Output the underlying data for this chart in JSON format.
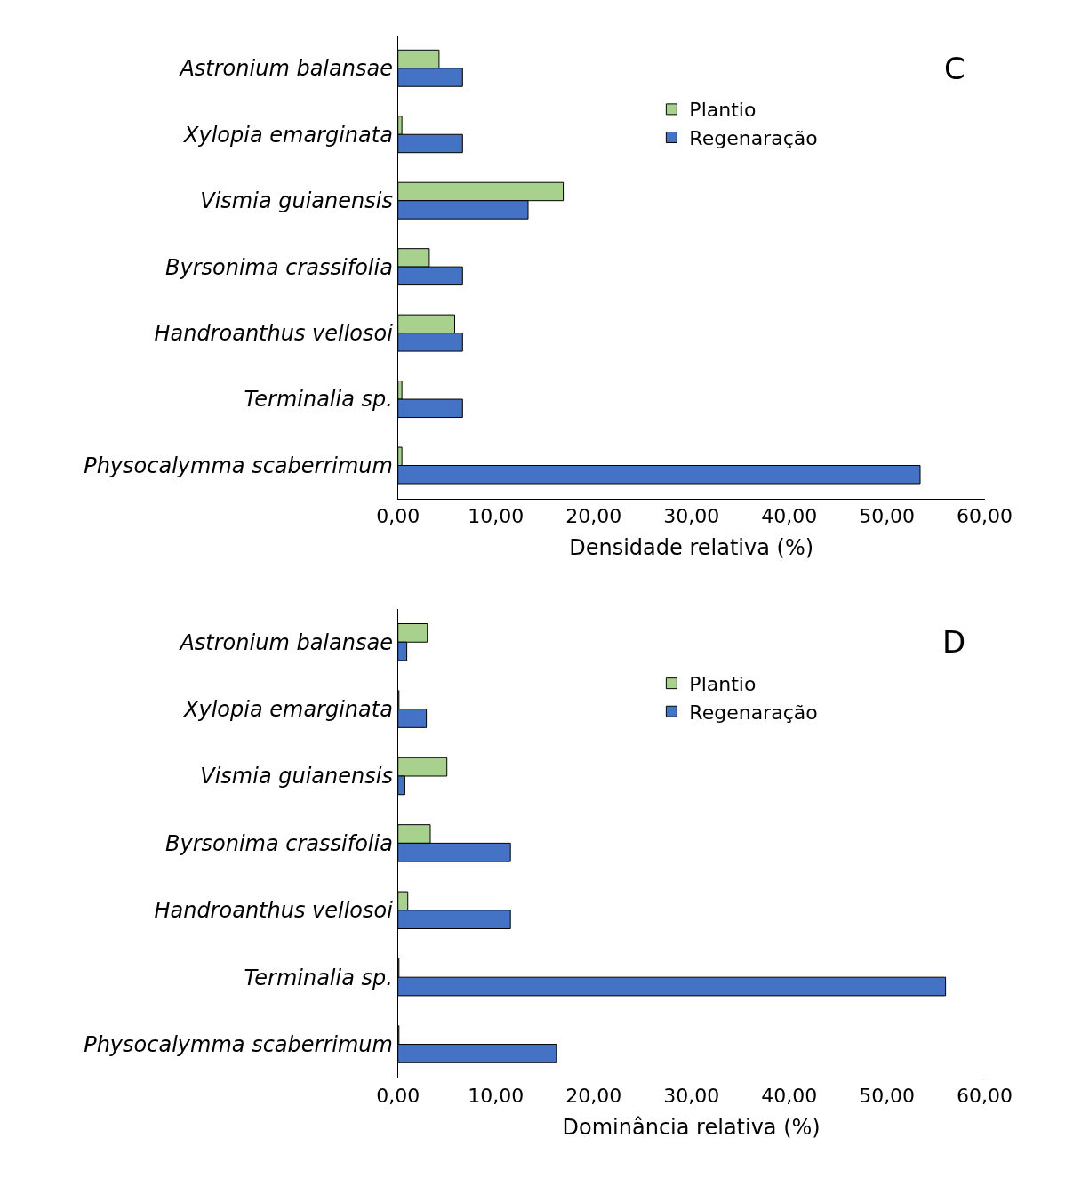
{
  "chart_data": [
    {
      "type": "bar",
      "orientation": "horizontal",
      "categories": [
        "Astronium balansae",
        "Xylopia emarginata",
        "Vismia guianensis",
        "Byrsonima crassifolia",
        "Handroanthus vellosoi",
        "Terminalia sp.",
        "Physocalymma scaberrimum"
      ],
      "series": [
        {
          "name": "Plantio",
          "color": "#a9d18e",
          "values": [
            4.2,
            0.4,
            16.9,
            3.2,
            5.8,
            0.4,
            0.4
          ]
        },
        {
          "name": "Regenaração",
          "color": "#4472c4",
          "values": [
            6.6,
            6.6,
            13.3,
            6.6,
            6.6,
            6.6,
            53.4
          ]
        }
      ],
      "xlabel": "Densidade relativa (%)",
      "xlim": [
        0,
        60
      ],
      "xticks": [
        {
          "value": 0,
          "label": "0,00"
        },
        {
          "value": 10,
          "label": "10,00"
        },
        {
          "value": 20,
          "label": "20,00"
        },
        {
          "value": 30,
          "label": "30,00"
        },
        {
          "value": 40,
          "label": "40,00"
        },
        {
          "value": 50,
          "label": "50,00"
        },
        {
          "value": 60,
          "label": "60,00"
        }
      ],
      "annotations": [
        "C"
      ],
      "legend": "top right"
    },
    {
      "type": "bar",
      "orientation": "horizontal",
      "categories": [
        "Astronium balansae",
        "Xylopia emarginata",
        "Vismia guianensis",
        "Byrsonima crassifolia",
        "Handroanthus vellosoi",
        "Terminalia sp.",
        "Physocalymma scaberrimum"
      ],
      "series": [
        {
          "name": "Plantio",
          "color": "#a9d18e",
          "values": [
            3.0,
            0.1,
            5.0,
            3.3,
            1.0,
            0.1,
            0.1
          ]
        },
        {
          "name": "Regenaração",
          "color": "#4472c4",
          "values": [
            0.9,
            2.9,
            0.7,
            11.5,
            11.5,
            56.0,
            16.2
          ]
        }
      ],
      "xlabel": "Dominância relativa (%)",
      "xlim": [
        0,
        60
      ],
      "xticks": [
        {
          "value": 0,
          "label": "0,00"
        },
        {
          "value": 10,
          "label": "10,00"
        },
        {
          "value": 20,
          "label": "20,00"
        },
        {
          "value": 30,
          "label": "30,00"
        },
        {
          "value": 40,
          "label": "40,00"
        },
        {
          "value": 50,
          "label": "50,00"
        },
        {
          "value": 60,
          "label": "60,00"
        }
      ],
      "annotations": [
        "D"
      ],
      "legend": "top right"
    }
  ]
}
